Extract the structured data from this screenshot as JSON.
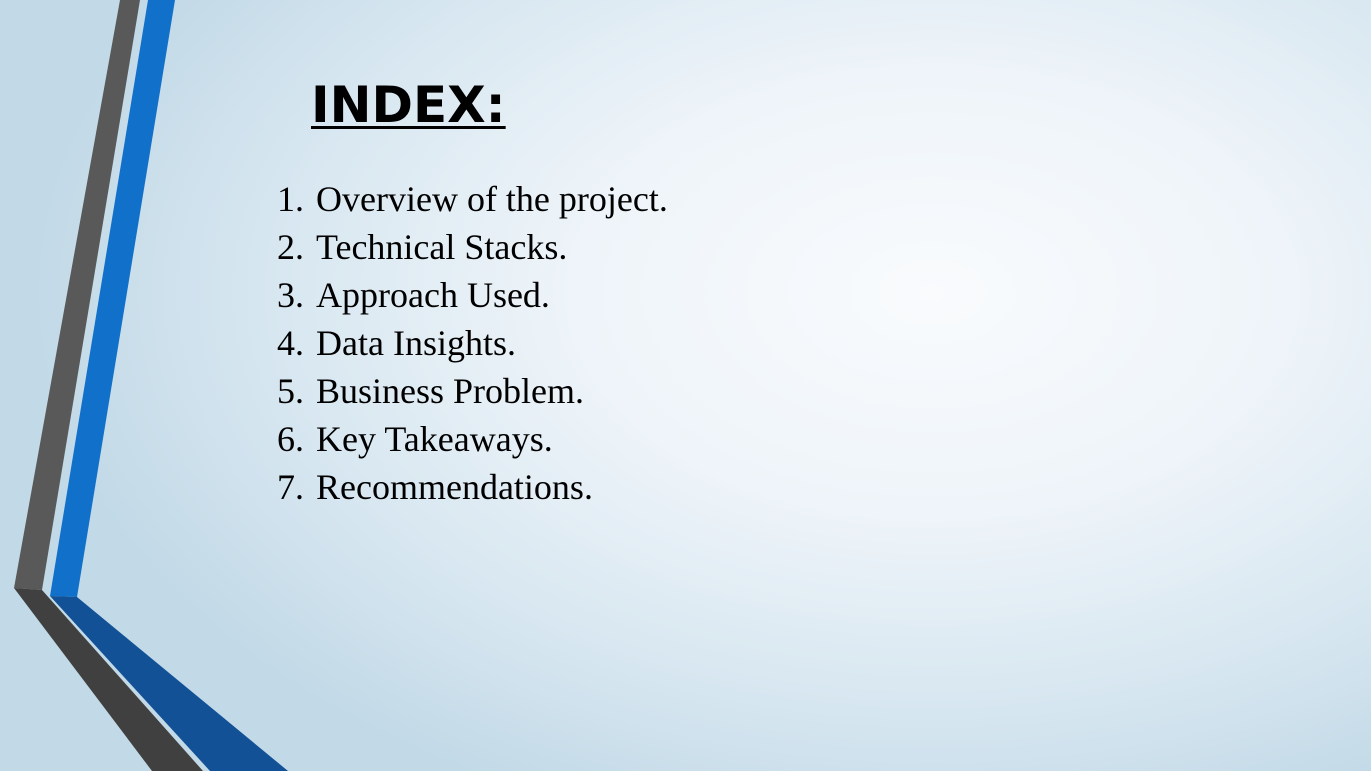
{
  "slide": {
    "title": "INDEX:",
    "items": [
      {
        "number": "1.",
        "text": "Overview of the project."
      },
      {
        "number": "2.",
        "text": "Technical Stacks."
      },
      {
        "number": "3.",
        "text": "Approach Used."
      },
      {
        "number": "4.",
        "text": "Data Insights."
      },
      {
        "number": "5.",
        "text": "Business Problem."
      },
      {
        "number": "6.",
        "text": "Key Takeaways."
      },
      {
        "number": "7.",
        "text": "Recommendations."
      }
    ]
  },
  "colors": {
    "stripe_gray": "#595959",
    "stripe_dark": "#404040",
    "stripe_blue": "#1170c9",
    "stripe_dark_blue": "#125196",
    "text": "#000000"
  }
}
